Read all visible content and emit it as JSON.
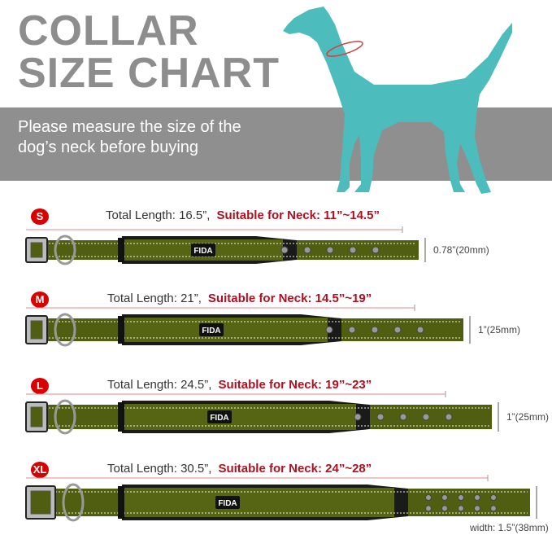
{
  "header": {
    "title_line1": "COLLAR",
    "title_line2": "SIZE CHART",
    "subtitle_line1": "Please measure the size of the",
    "subtitle_line2": "dog’s neck before buying"
  },
  "brand": "FIDA",
  "colors": {
    "title": "#8d8d8d",
    "band": "#8f8f8f",
    "dog": "#4dbcbc",
    "badge": "#d90000",
    "neck_text": "#b01020",
    "collar": "#4f5e10"
  },
  "sizes": [
    {
      "badge": "S",
      "total": "Total Length: 16.5”,",
      "neck": "Suitable for Neck: 11”~14.5”",
      "width": "0.78”(20mm)",
      "holes": 5
    },
    {
      "badge": "M",
      "total": "Total Length: 21”,",
      "neck": "Suitable for Neck: 14.5”~19”",
      "width": "1”(25mm)",
      "holes": 5
    },
    {
      "badge": "L",
      "total": "Total Length: 24.5”,",
      "neck": "Suitable for Neck: 19”~23”",
      "width": "1”(25mm)",
      "holes": 5
    },
    {
      "badge": "XL",
      "total": "Total Length: 30.5”,",
      "neck": "Suitable for Neck: 24”~28”",
      "width": "width: 1.5”(38mm)",
      "holes": 10
    }
  ]
}
